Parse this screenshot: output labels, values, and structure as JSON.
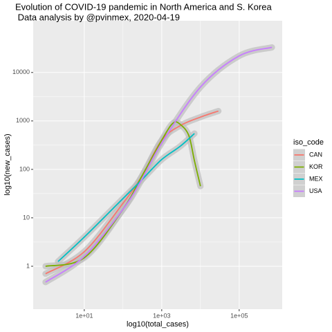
{
  "chart_data": {
    "type": "line",
    "title": "Evolution of COVID-19 pandemic in North America and S. Korea",
    "subtitle": " Data analysis by @pvinmex, 2020-04-19",
    "x_label": "log10(total_cases)",
    "y_label": "log10(new_cases)",
    "legend_title": "iso_code",
    "log_x": true,
    "log_y": true,
    "grid": true,
    "legend": "right",
    "xlim": [
      0.48,
      1290000
    ],
    "ylim": [
      0.13,
      117000
    ],
    "xticks": [
      {
        "value": 10,
        "label": "1e+01"
      },
      {
        "value": 1000,
        "label": "1e+03"
      },
      {
        "value": 100000,
        "label": "1e+05"
      }
    ],
    "yticks": [
      1,
      10,
      100,
      1000,
      10000
    ],
    "series": [
      {
        "name": "CAN",
        "color": "#F8766D",
        "x": [
          1,
          10,
          100,
          300,
          1000,
          3000,
          10000,
          29000
        ],
        "values": [
          0.7,
          2,
          20,
          70,
          400,
          800,
          1200,
          1600
        ]
      },
      {
        "name": "KOR",
        "color": "#7CAE00",
        "x": [
          1,
          10,
          100,
          300,
          1000,
          1950,
          3000,
          5000,
          7000,
          10000
        ],
        "values": [
          1.0,
          1.5,
          15,
          70,
          400,
          900,
          850,
          500,
          150,
          45
        ]
      },
      {
        "name": "MEX",
        "color": "#00BFC4",
        "x": [
          2.1,
          10,
          100,
          300,
          1000,
          3000,
          7000
        ],
        "values": [
          1.25,
          4,
          25,
          60,
          160,
          300,
          550
        ]
      },
      {
        "name": "USA",
        "color": "#C77CFF",
        "x": [
          1,
          10,
          100,
          300,
          1000,
          10000,
          100000,
          700000
        ],
        "values": [
          0.47,
          1.6,
          15,
          60,
          350,
          5000,
          22000,
          33000
        ]
      }
    ]
  }
}
